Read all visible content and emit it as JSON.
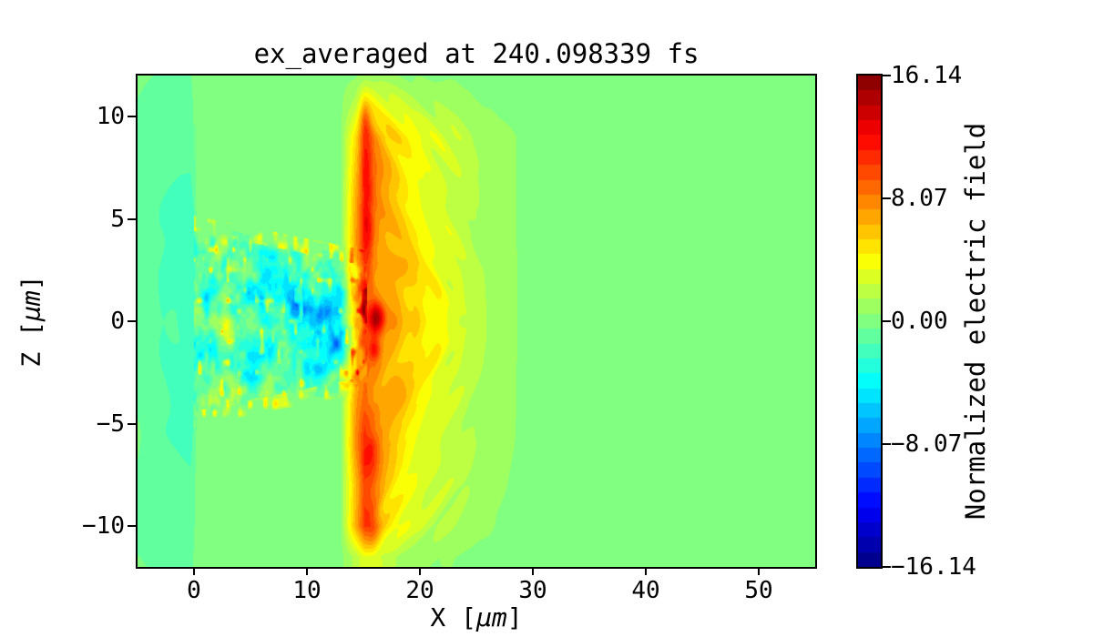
{
  "chart_data": {
    "type": "heatmap",
    "title": "ex_averaged at 240.098339 fs",
    "xlabel": "X [μm]",
    "ylabel": "Z [μm]",
    "xlabel_parts": {
      "pre": "X [",
      "mu": "μm",
      "post": "]"
    },
    "ylabel_parts": {
      "pre": "Z [",
      "mu": "μm",
      "post": "]"
    },
    "xlim": [
      -5,
      55
    ],
    "ylim": [
      -12,
      12
    ],
    "x_ticks": [
      0,
      10,
      20,
      30,
      40,
      50
    ],
    "x_tick_labels": [
      "0",
      "10",
      "20",
      "30",
      "40",
      "50"
    ],
    "y_ticks": [
      10,
      5,
      0,
      -5,
      -10
    ],
    "y_tick_labels": [
      "10",
      "5",
      "0",
      "−5",
      "−10"
    ],
    "colorbar": {
      "label": "Normalized electric field",
      "vmin": -16.14,
      "vmax": 16.14,
      "ticks": [
        16.14,
        8.07,
        0.0,
        -8.07,
        -16.14
      ],
      "tick_labels": [
        "16.14",
        "8.07",
        "0.00",
        "−8.07",
        "−16.14"
      ],
      "colormap": "jet",
      "n_levels": 33,
      "position": "right"
    },
    "grid": {
      "x": [
        -5,
        -3,
        -1.2,
        -0.3,
        0.4,
        1.5,
        3,
        5,
        7,
        9,
        11,
        13,
        14.3,
        15.1,
        16,
        17,
        18.5,
        20.5,
        23,
        25,
        27,
        29,
        32,
        38,
        45,
        55
      ],
      "z": [
        12,
        10.5,
        9,
        6,
        4,
        2.5,
        1,
        0,
        -1,
        -2.5,
        -4,
        -6,
        -8,
        -10,
        -11.5
      ],
      "values": [
        [
          -0.4,
          -0.6,
          -0.8,
          -0.8,
          0.2,
          0.2,
          0.2,
          0.2,
          0.2,
          0.2,
          0.2,
          0.2,
          0.3,
          0.8,
          0.8,
          0.6,
          0.5,
          0.4,
          0.3,
          0.2,
          0.2,
          0.2,
          0.2,
          0.2,
          0.2,
          0.2
        ],
        [
          -0.7,
          -1.0,
          -1.3,
          -1.4,
          0.2,
          0.2,
          0.2,
          0.2,
          0.2,
          0.2,
          0.2,
          0.3,
          2.0,
          5.0,
          4.2,
          3.2,
          2.4,
          1.6,
          1.0,
          0.6,
          0.3,
          0.2,
          0.2,
          0.2,
          0.2,
          0.2
        ],
        [
          -0.8,
          -1.1,
          -1.5,
          -1.6,
          0.2,
          0.2,
          0.2,
          0.2,
          0.2,
          0.2,
          0.2,
          0.3,
          5.0,
          8.5,
          7.2,
          6.0,
          4.8,
          3.4,
          2.3,
          1.4,
          0.8,
          0.4,
          0.2,
          0.2,
          0.2,
          0.2
        ],
        [
          -0.8,
          -1.2,
          -1.6,
          -1.7,
          0.2,
          0.2,
          0.2,
          0.2,
          0.2,
          0.2,
          0.2,
          0.3,
          6.5,
          10.2,
          8.0,
          6.4,
          5.2,
          3.9,
          2.6,
          1.5,
          0.8,
          0.4,
          0.2,
          0.2,
          0.2,
          0.2
        ],
        [
          -0.9,
          -1.2,
          -1.6,
          -1.7,
          -0.5,
          -0.8,
          -0.7,
          -0.5,
          0.3,
          0.3,
          0.3,
          0.3,
          7.0,
          10.5,
          8.0,
          6.6,
          5.4,
          4.1,
          2.7,
          1.5,
          0.8,
          0.4,
          0.2,
          0.2,
          0.2,
          0.2
        ],
        [
          -0.9,
          -1.3,
          -1.7,
          -1.8,
          -1.5,
          -1.8,
          -2.0,
          -2.4,
          -2.8,
          -2.6,
          -2.2,
          -1.4,
          6.5,
          9.5,
          7.4,
          6.4,
          5.5,
          4.4,
          2.9,
          1.7,
          0.9,
          0.4,
          0.2,
          0.2,
          0.2,
          0.2
        ],
        [
          -0.9,
          -1.3,
          -1.6,
          -1.7,
          -1.8,
          -2.2,
          -2.4,
          -2.8,
          -3.4,
          -4.6,
          -4.6,
          -3.2,
          5.0,
          8.2,
          7.6,
          6.6,
          5.8,
          4.6,
          3.0,
          1.7,
          0.9,
          0.4,
          0.2,
          0.2,
          0.2,
          0.2
        ],
        [
          -0.9,
          -1.3,
          -1.5,
          -1.6,
          -1.9,
          -2.3,
          -2.2,
          -2.6,
          -3.8,
          -4.2,
          -4.8,
          -3.6,
          4.5,
          8.8,
          9.8,
          7.0,
          5.8,
          4.7,
          3.0,
          1.8,
          0.9,
          0.4,
          0.2,
          0.2,
          0.2,
          0.2
        ],
        [
          -0.9,
          -1.3,
          -1.4,
          -1.5,
          -1.8,
          -2.2,
          -2.3,
          -2.7,
          -3.2,
          -3.6,
          -4.4,
          -3.0,
          5.0,
          8.2,
          8.6,
          6.6,
          5.8,
          4.6,
          3.0,
          1.7,
          0.9,
          0.4,
          0.2,
          0.2,
          0.2,
          0.2
        ],
        [
          -0.9,
          -1.2,
          -1.4,
          -1.5,
          -1.5,
          -1.8,
          -2.0,
          -2.3,
          -2.5,
          -2.8,
          -3.6,
          -2.0,
          6.0,
          8.8,
          7.8,
          6.4,
          5.6,
          4.4,
          2.8,
          1.6,
          0.8,
          0.4,
          0.2,
          0.2,
          0.2,
          0.2
        ],
        [
          -0.9,
          -1.2,
          -1.5,
          -1.6,
          -0.5,
          -0.8,
          -0.7,
          -0.5,
          0.3,
          0.3,
          0.3,
          0.3,
          7.0,
          9.2,
          7.6,
          6.2,
          5.2,
          3.9,
          2.5,
          1.5,
          0.8,
          0.4,
          0.2,
          0.2,
          0.2,
          0.2
        ],
        [
          -0.8,
          -1.2,
          -1.5,
          -1.6,
          0.2,
          0.2,
          0.2,
          0.2,
          0.2,
          0.2,
          0.2,
          0.3,
          7.5,
          10.8,
          8.4,
          6.4,
          5.0,
          3.6,
          2.3,
          1.4,
          0.7,
          0.4,
          0.2,
          0.2,
          0.2,
          0.2
        ],
        [
          -0.8,
          -1.1,
          -1.4,
          -1.5,
          0.2,
          0.2,
          0.2,
          0.2,
          0.2,
          0.2,
          0.2,
          0.3,
          6.0,
          9.2,
          7.4,
          5.6,
          4.3,
          3.0,
          1.9,
          1.1,
          0.6,
          0.3,
          0.2,
          0.2,
          0.2,
          0.2
        ],
        [
          -0.7,
          -1.0,
          -1.2,
          -1.3,
          0.2,
          0.2,
          0.2,
          0.2,
          0.2,
          0.2,
          0.2,
          0.3,
          6.5,
          9.8,
          7.4,
          5.0,
          3.4,
          2.2,
          1.3,
          0.8,
          0.4,
          0.3,
          0.2,
          0.2,
          0.2,
          0.2
        ],
        [
          -0.5,
          -0.8,
          -1.0,
          -1.0,
          0.2,
          0.2,
          0.2,
          0.2,
          0.2,
          0.2,
          0.2,
          0.2,
          1.8,
          3.2,
          2.7,
          1.7,
          1.1,
          0.7,
          0.4,
          0.3,
          0.2,
          0.2,
          0.2,
          0.2,
          0.2,
          0.2
        ]
      ]
    },
    "features": [
      {
        "x": 16.2,
        "z": 0.2,
        "rx": 0.8,
        "rz": 0.7,
        "a": 5.0
      },
      {
        "x": 16.0,
        "z": -1.4,
        "rx": 0.5,
        "rz": 0.5,
        "a": 3.5
      },
      {
        "x": 15.4,
        "z": 4.6,
        "rx": 0.5,
        "rz": 2.2,
        "a": 2.6
      },
      {
        "x": 15.3,
        "z": 8.0,
        "rx": 0.5,
        "rz": 1.5,
        "a": 2.0
      },
      {
        "x": 15.2,
        "z": 9.9,
        "rx": 0.5,
        "rz": 0.9,
        "a": 2.4
      },
      {
        "x": 15.7,
        "z": -6.6,
        "rx": 0.6,
        "rz": 1.3,
        "a": 2.0
      },
      {
        "x": 15.8,
        "z": -10.1,
        "rx": 0.6,
        "rz": 1.1,
        "a": 2.4
      },
      {
        "x": 3.3,
        "z": -0.6,
        "rx": 1.0,
        "rz": 0.8,
        "a": 4.2
      },
      {
        "x": 9.4,
        "z": 0.9,
        "rx": 0.9,
        "rz": 0.7,
        "a": -3.6
      },
      {
        "x": 11.7,
        "z": 0.4,
        "rx": 0.8,
        "rz": 0.6,
        "a": -4.0
      },
      {
        "x": 13.1,
        "z": 1.3,
        "rx": 0.6,
        "rz": 0.5,
        "a": -3.2
      },
      {
        "x": 11.1,
        "z": -2.4,
        "rx": 0.7,
        "rz": 0.5,
        "a": -3.8
      },
      {
        "x": 12.6,
        "z": -1.1,
        "rx": 0.5,
        "rz": 0.5,
        "a": -3.2
      },
      {
        "x": 7.9,
        "z": 1.6,
        "rx": 0.7,
        "rz": 0.5,
        "a": -2.6
      },
      {
        "x": 18.3,
        "z": 2.6,
        "rx": 1.2,
        "rz": 0.9,
        "a": 1.4
      },
      {
        "x": 18.0,
        "z": -3.4,
        "rx": 1.0,
        "rz": 0.9,
        "a": 1.4
      }
    ],
    "texture": {
      "channel": {
        "x0": 0,
        "x1": 15.3,
        "half_width_x0": 4.6,
        "half_width_x1": 2.9,
        "octaves": [
          {
            "scale": 1.3,
            "amp": 2.2
          },
          {
            "scale": 0.55,
            "amp": 1.7
          },
          {
            "scale": 0.28,
            "amp": 0.9
          }
        ],
        "spike_threshold": 0.75,
        "spike_gain": 6.5,
        "edge": {
          "inner": 0.2,
          "outer": 0.55,
          "scale": 0.45,
          "threshold": 0.45,
          "gain": 5.0
        },
        "seed": 7
      },
      "wall_streaks": {
        "x0": 14.5,
        "x1": 27,
        "amp": 0.9,
        "seed": 12
      },
      "wake_rings": {
        "cx": 15.6,
        "cz": 0.2,
        "squash": 0.85,
        "wavelength": 1.9,
        "amp": 0.55,
        "rmax": 10
      },
      "left_band": {
        "x1": 0.1,
        "scale": 2.6,
        "amp": 0.45,
        "seed": 3
      },
      "left_rings": {
        "cx": -1,
        "cz": 0,
        "squash": 0.75,
        "wavelength": 2.6,
        "amp": 0.18,
        "rmax": 6
      }
    },
    "accent_colors": {
      "background_green": "#80ff80",
      "left_band_teal": "#42ffbd",
      "wall_orange": "#ff6800",
      "hotspot_dark_red": "#cd0000",
      "blue_blob": "#0087ff",
      "text": "#000000"
    }
  }
}
